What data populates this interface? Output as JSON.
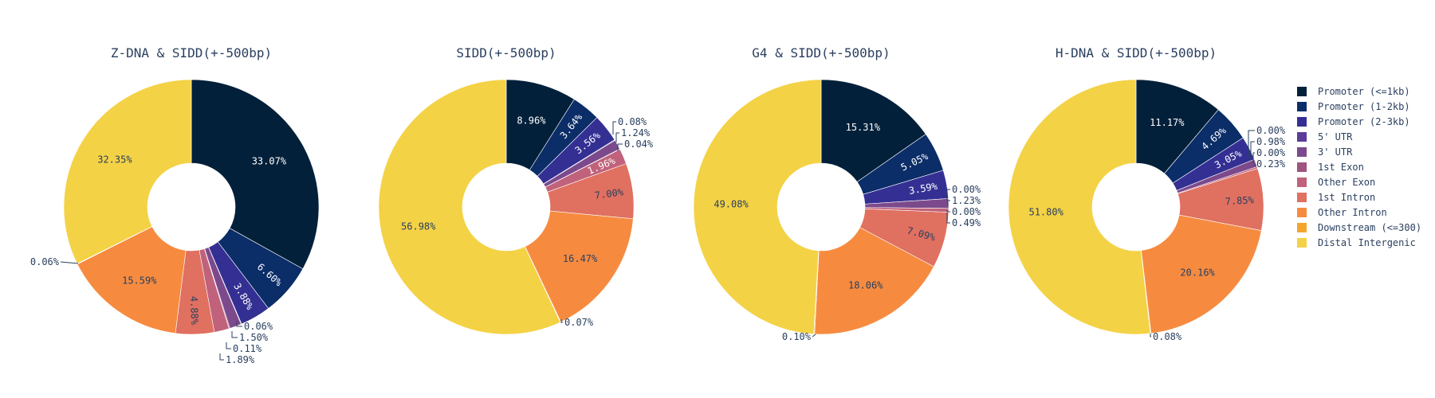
{
  "legend": {
    "categories": [
      "Promoter (<=1kb)",
      "Promoter (1-2kb)",
      "Promoter (2-3kb)",
      "5' UTR",
      "3' UTR",
      "1st Exon",
      "Other Exon",
      "1st Intron",
      "Other Intron",
      "Downstream (<=300)",
      "Distal Intergenic"
    ],
    "colors": [
      "#03203a",
      "#0b2d68",
      "#343093",
      "#5b3c98",
      "#7c4a8c",
      "#9f5580",
      "#c0627b",
      "#e07060",
      "#f68b40",
      "#f4a52e",
      "#f4d246"
    ]
  },
  "chart_data": [
    {
      "type": "pie",
      "title": "Z-DNA & SIDD(+-500bp)",
      "hole": true,
      "values": [
        33.07,
        6.6,
        3.88,
        0.06,
        1.5,
        0.11,
        1.89,
        4.88,
        15.59,
        0.06,
        32.35
      ],
      "labels": [
        "33.07%",
        "6.60%",
        "3.88%",
        "0.06%",
        "1.50%",
        "0.11%",
        "1.89%",
        "4.88%",
        "15.59%",
        "0.06%",
        "32.35%"
      ]
    },
    {
      "type": "pie",
      "title": "SIDD(+-500bp)",
      "hole": true,
      "values": [
        8.96,
        3.64,
        3.56,
        0.08,
        1.24,
        0.04,
        1.96,
        7.0,
        16.47,
        0.07,
        56.98
      ],
      "labels": [
        "8.96%",
        "3.64%",
        "3.56%",
        "0.08%",
        "1.24%",
        "0.04%",
        "1.96%",
        "7.00%",
        "16.47%",
        "0.07%",
        "56.98%"
      ]
    },
    {
      "type": "pie",
      "title": "G4 & SIDD(+-500bp)",
      "hole": true,
      "values": [
        15.31,
        5.05,
        3.59,
        0.0,
        1.23,
        0.0,
        0.49,
        7.09,
        18.06,
        0.1,
        49.08
      ],
      "labels": [
        "15.31%",
        "5.05%",
        "3.59%",
        "0.00%",
        "1.23%",
        "0.00%",
        "0.49%",
        "7.09%",
        "18.06%",
        "0.10%",
        "49.08%"
      ]
    },
    {
      "type": "pie",
      "title": "H-DNA & SIDD(+-500bp)",
      "hole": true,
      "values": [
        11.17,
        4.69,
        3.05,
        0.0,
        0.98,
        0.0,
        0.23,
        7.85,
        20.16,
        0.08,
        51.8
      ],
      "labels": [
        "11.17%",
        "4.69%",
        "3.05%",
        "0.00%",
        "0.98%",
        "0.00%",
        "0.23%",
        "7.85%",
        "20.16%",
        "0.08%",
        "51.80%"
      ]
    }
  ]
}
